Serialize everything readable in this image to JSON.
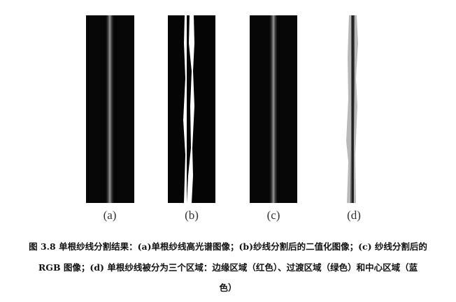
{
  "figure": {
    "panels": [
      {
        "label": "(a)"
      },
      {
        "label": "(b)"
      },
      {
        "label": "(c)"
      },
      {
        "label": "(d)"
      }
    ],
    "caption": {
      "line1": "图 3.8  单根纱线分割结果：(a)单根纱线高光谱图像；(b)纱线分割后的二值化图像；(c) 纱线分割后的",
      "line2": "RGB 图像；(d) 单根纱线被分为三个区域：边缘区域（红色）、过渡区域（绿色）和中心区域（蓝",
      "line3": "色）"
    }
  }
}
